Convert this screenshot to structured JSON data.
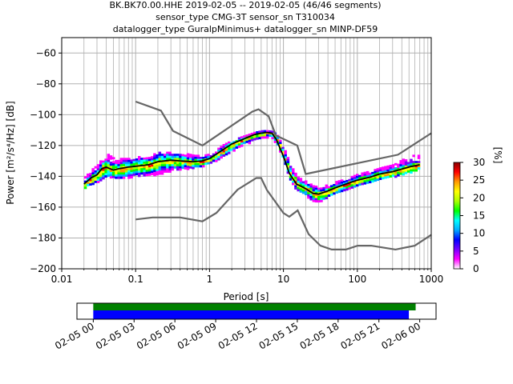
{
  "chart_data": {
    "type": "heatmap",
    "title_lines": [
      "BK.BK70.00.HHE   2019-02-05 -- 2019-02-05  (46/46 segments)",
      "sensor_type CMG-3T sensor_sn T310034",
      "datalogger_type GuralpMinimus+ datalogger_sn MINP-DF59"
    ],
    "xlabel": "Period [s]",
    "ylabel": "Power [m²/s⁴/Hz] [dB]",
    "xscale": "log",
    "xlim": [
      0.01,
      1000
    ],
    "ylim": [
      -200,
      -50
    ],
    "x_ticks": [
      0.01,
      0.1,
      1,
      10,
      100,
      1000
    ],
    "x_tick_labels": [
      "0.01",
      "0.1",
      "1",
      "10",
      "100",
      "1000"
    ],
    "y_ticks": [
      -200,
      -180,
      -160,
      -140,
      -120,
      -100,
      -80,
      -60
    ],
    "y_tick_labels": [
      "−200",
      "−180",
      "−160",
      "−140",
      "−120",
      "−100",
      "−80",
      "−60"
    ],
    "grid": true,
    "colorbar": {
      "label": "[%]",
      "range": [
        0,
        30
      ],
      "ticks": [
        0,
        5,
        10,
        15,
        20,
        25,
        30
      ],
      "tick_labels": [
        "0",
        "5",
        "10",
        "15",
        "20",
        "25",
        "30"
      ],
      "colors": [
        "#ffffff",
        "#ff00ff",
        "#7700ff",
        "#0000ff",
        "#00aaff",
        "#00ffff",
        "#00ff00",
        "#aaff00",
        "#ffff00",
        "#ff9900",
        "#ff0000",
        "#880000"
      ]
    },
    "noise_model_high": {
      "x": [
        0.1,
        0.22,
        0.32,
        0.8,
        3.8,
        4.6,
        6.3,
        7.9,
        15.4,
        20,
        354.8,
        1000
      ],
      "y": [
        -91.5,
        -97.4,
        -110.5,
        -120,
        -98,
        -96.5,
        -101,
        -113.5,
        -120,
        -138.5,
        -126,
        -112
      ]
    },
    "noise_model_low": {
      "x": [
        0.1,
        0.17,
        0.4,
        0.8,
        1.24,
        2.4,
        4.3,
        5,
        6,
        10,
        12,
        15.6,
        21.9,
        31.6,
        45,
        70,
        101,
        154,
        328,
        600,
        1000
      ],
      "y": [
        -168,
        -166.7,
        -166.7,
        -169.2,
        -163.7,
        -148.6,
        -141.1,
        -141.1,
        -149,
        -163.8,
        -166.2,
        -162.1,
        -177.5,
        -185,
        -187.5,
        -187.5,
        -185,
        -185,
        -187.5,
        -185,
        -178
      ]
    },
    "mean_curve": {
      "x": [
        0.02,
        0.025,
        0.03,
        0.035,
        0.04,
        0.05,
        0.06,
        0.07,
        0.08,
        0.1,
        0.15,
        0.2,
        0.3,
        0.4,
        0.6,
        0.8,
        1,
        1.5,
        2,
        3,
        4,
        5,
        6,
        7,
        8,
        10,
        12,
        15,
        20,
        25,
        30,
        40,
        50,
        70,
        100,
        150,
        200,
        300,
        500,
        700
      ],
      "y": [
        -145,
        -141,
        -139,
        -135,
        -134,
        -136,
        -135,
        -134.5,
        -134,
        -133.5,
        -132.5,
        -130.5,
        -129.5,
        -130,
        -130.5,
        -130,
        -128.5,
        -123,
        -119,
        -115.5,
        -113,
        -112,
        -111.5,
        -112,
        -116,
        -127,
        -138,
        -145,
        -148,
        -151,
        -151.5,
        -149.5,
        -147.5,
        -145,
        -142.5,
        -140.5,
        -138.5,
        -137,
        -134,
        -132.5
      ]
    },
    "psd_cloud": {
      "x": [
        0.02,
        0.025,
        0.03,
        0.035,
        0.04,
        0.05,
        0.06,
        0.07,
        0.08,
        0.1,
        0.15,
        0.2,
        0.3,
        0.4,
        0.6,
        0.8,
        1,
        1.5,
        2,
        3,
        4,
        5,
        6,
        7,
        8,
        10,
        12,
        15,
        20,
        25,
        30,
        40,
        50,
        70,
        100,
        150,
        200,
        300,
        500,
        700
      ],
      "top": [
        -140,
        -135,
        -132,
        -127,
        -125,
        -128,
        -128,
        -128,
        -128,
        -127,
        -126,
        -124,
        -124,
        -124,
        -126,
        -126,
        -125,
        -119,
        -116,
        -113,
        -111,
        -110,
        -110,
        -110.5,
        -113,
        -122,
        -132,
        -140,
        -143,
        -146,
        -146,
        -145,
        -143,
        -141,
        -138,
        -136,
        -134,
        -132,
        -126,
        -126
      ],
      "bottom": [
        -147,
        -145,
        -143,
        -141,
        -139,
        -141,
        -141,
        -141,
        -140,
        -140,
        -139,
        -138,
        -136,
        -135,
        -134,
        -133,
        -131,
        -127,
        -123,
        -119,
        -116,
        -115,
        -114,
        -115,
        -120,
        -131,
        -143,
        -149,
        -153,
        -156,
        -156,
        -153,
        -151,
        -148,
        -146,
        -144,
        -142,
        -140,
        -137,
        -135
      ]
    }
  },
  "time_coverage": {
    "tick_labels": [
      "02-05 00",
      "02-05 03",
      "02-05 06",
      "02-05 09",
      "02-05 12",
      "02-05 15",
      "02-05 18",
      "02-05 21",
      "02-06 00"
    ],
    "tick_hours": [
      0,
      3,
      6,
      9,
      12,
      15,
      18,
      21,
      24
    ],
    "xlim_hours": [
      -1.2,
      25.2
    ],
    "data_bar": {
      "start_hours": 0,
      "end_hours": 23.7,
      "color": "#008000"
    },
    "psd_bar": {
      "start_hours": 0,
      "end_hours": 23.2,
      "color": "#0000ff"
    }
  },
  "colors": {
    "noise_model": "#666666",
    "mean": "#000000",
    "grid": "#b0b0b0"
  }
}
